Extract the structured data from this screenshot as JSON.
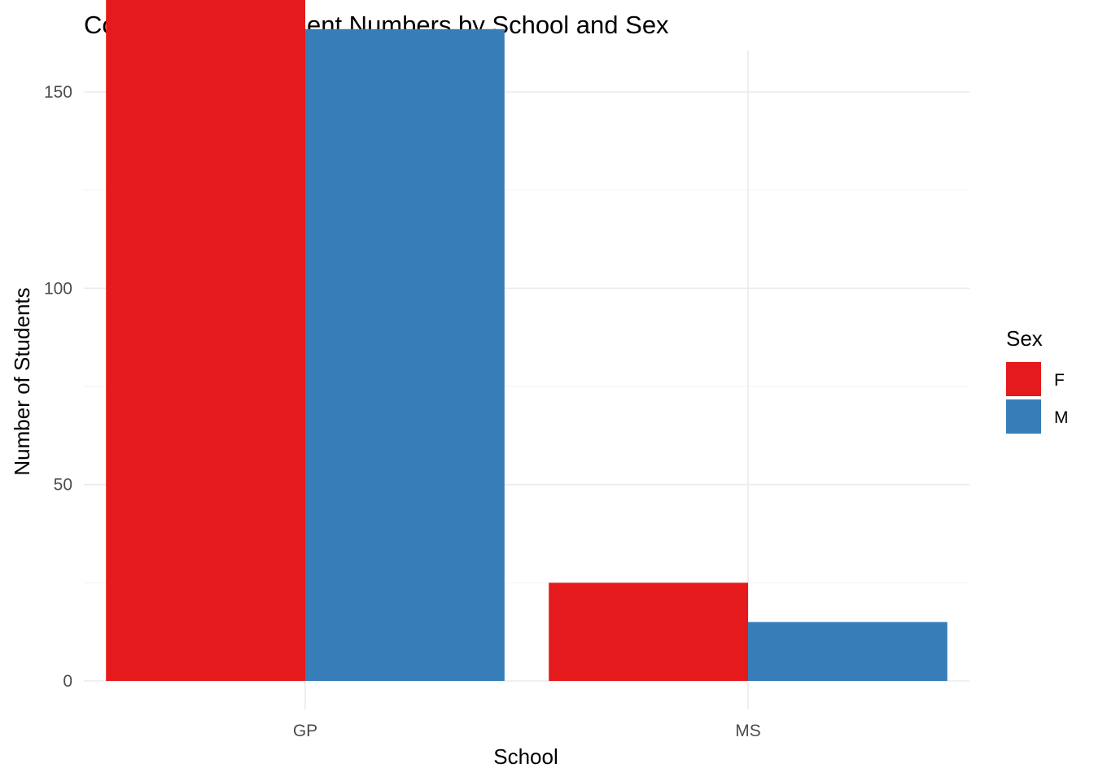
{
  "chart_data": {
    "type": "bar",
    "title": "Comparison of Student Numbers by School and Sex",
    "xlabel": "School",
    "ylabel": "Number of Students",
    "categories": [
      "GP",
      "MS"
    ],
    "series": [
      {
        "name": "F",
        "values": [
          183,
          25
        ],
        "color": "#E41A1C"
      },
      {
        "name": "M",
        "values": [
          166,
          15
        ],
        "color": "#377EB8"
      }
    ],
    "ylim": [
      0,
      195
    ],
    "yticks": [
      0,
      50,
      100,
      150
    ],
    "yticks_minor": [
      25,
      75,
      125,
      175
    ],
    "grid": true,
    "legend": {
      "title": "Sex",
      "position": "right"
    }
  }
}
